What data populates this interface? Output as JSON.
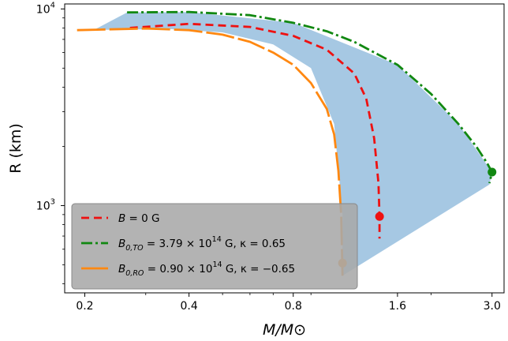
{
  "chart_data": {
    "type": "line",
    "xlabel": "M/M⊙",
    "ylabel": "R (km)",
    "xscale": "log",
    "yscale": "log",
    "xlim": [
      0.175,
      3.25
    ],
    "ylim": [
      360,
      10600
    ],
    "x_ticks": [
      {
        "value": 0.2,
        "label": "0.2"
      },
      {
        "value": 0.4,
        "label": "0.4"
      },
      {
        "value": 0.8,
        "label": "0.8"
      },
      {
        "value": 1.6,
        "label": "1.6"
      },
      {
        "value": 3.0,
        "label": "3.0"
      }
    ],
    "y_ticks": [
      {
        "value": 1000,
        "label": "10",
        "exp": "3"
      },
      {
        "value": 10000,
        "label": "10",
        "exp": "4"
      }
    ],
    "grid": false,
    "legend_position": "lower-left",
    "band": {
      "color": "#a6c8e3",
      "upper_edge": [
        [
          0.215,
          7900
        ],
        [
          0.265,
          9600
        ],
        [
          0.4,
          9650
        ],
        [
          0.8,
          8500
        ],
        [
          1.6,
          5200
        ],
        [
          2.4,
          2600
        ],
        [
          3.0,
          1480
        ],
        [
          2.95,
          1280
        ]
      ],
      "lower_edge": [
        [
          1.11,
          440
        ],
        [
          1.11,
          900
        ],
        [
          1.05,
          2600
        ],
        [
          0.9,
          5000
        ],
        [
          0.7,
          6600
        ],
        [
          0.5,
          7600
        ],
        [
          0.35,
          7900
        ],
        [
          0.19,
          7800
        ]
      ]
    },
    "series": [
      {
        "name": "B = 0 G",
        "legend": {
          "main": "B",
          "mid": " = 0 G"
        },
        "color": "#ee1111",
        "dash": "10,6",
        "points": [
          [
            0.27,
            8000
          ],
          [
            0.4,
            8400
          ],
          [
            0.6,
            8100
          ],
          [
            0.8,
            7300
          ],
          [
            1.0,
            6200
          ],
          [
            1.2,
            4700
          ],
          [
            1.3,
            3500
          ],
          [
            1.37,
            2200
          ],
          [
            1.41,
            1300
          ],
          [
            1.42,
            880
          ],
          [
            1.42,
            680
          ]
        ],
        "endpoint": [
          1.42,
          880
        ]
      },
      {
        "name": "B0,TO = 3.79 × 10^14 G, κ = 0.65",
        "legend": {
          "main": "B",
          "sub": "0,TO",
          "mid": " = 3.79 × 10",
          "exp": "14",
          "tail": " G, κ = 0.65"
        },
        "color": "#118811",
        "dash": "14,4,3,4",
        "points": [
          [
            0.265,
            9600
          ],
          [
            0.4,
            9650
          ],
          [
            0.6,
            9300
          ],
          [
            0.8,
            8500
          ],
          [
            1.0,
            7700
          ],
          [
            1.2,
            6800
          ],
          [
            1.6,
            5200
          ],
          [
            2.0,
            3700
          ],
          [
            2.4,
            2600
          ],
          [
            2.7,
            2000
          ],
          [
            2.9,
            1650
          ],
          [
            3.0,
            1480
          ],
          [
            2.95,
            1300
          ]
        ],
        "endpoint": [
          3.0,
          1480
        ]
      },
      {
        "name": "B0,RO = 0.90 × 10^14 G, κ = −0.65",
        "legend": {
          "main": "B",
          "sub": "0,RO",
          "mid": " = 0.90 × 10",
          "exp": "14",
          "tail": " G, κ = −0.65"
        },
        "color": "#ff8811",
        "dash": "36,5",
        "points": [
          [
            0.19,
            7800
          ],
          [
            0.3,
            7950
          ],
          [
            0.4,
            7800
          ],
          [
            0.5,
            7400
          ],
          [
            0.6,
            6800
          ],
          [
            0.7,
            6000
          ],
          [
            0.8,
            5200
          ],
          [
            0.9,
            4200
          ],
          [
            1.0,
            3100
          ],
          [
            1.05,
            2300
          ],
          [
            1.08,
            1500
          ],
          [
            1.1,
            900
          ],
          [
            1.11,
            440
          ]
        ],
        "endpoint": [
          1.11,
          510
        ]
      }
    ]
  }
}
